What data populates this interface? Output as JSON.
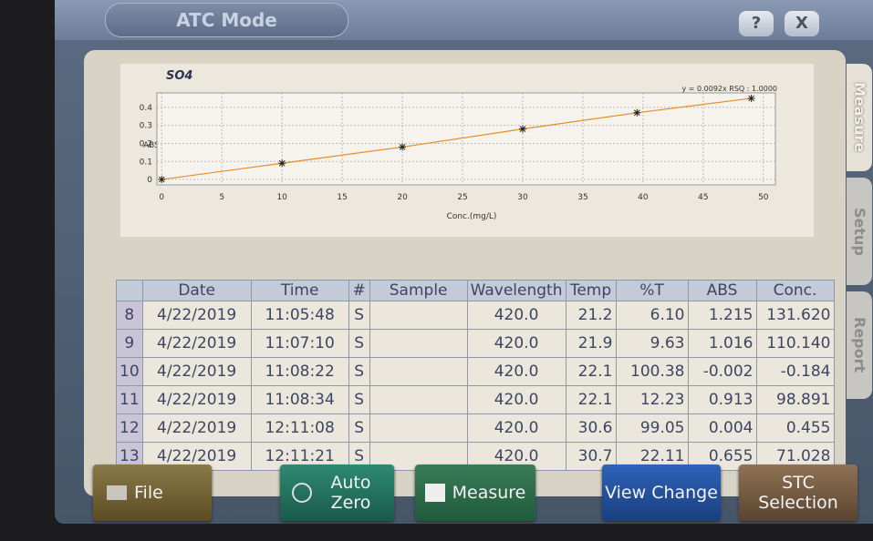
{
  "header": {
    "title": "ATC Mode",
    "help": "?",
    "close": "X"
  },
  "tabs": [
    "Measure",
    "Setup",
    "Report"
  ],
  "chart_data": {
    "type": "scatter",
    "title": "SO4",
    "xlabel": "Conc.(mg/L)",
    "ylabel": "ABS",
    "annotation": "y = 0.0092x  RSQ : 1.0000",
    "x": [
      0,
      10,
      20,
      30,
      39.5,
      49
    ],
    "values": [
      0,
      0.09,
      0.18,
      0.28,
      0.37,
      0.45
    ],
    "color": "#222222",
    "line_color": "#e0902a",
    "xlim": [
      -0.4,
      51
    ],
    "ylim": [
      -0.03,
      0.48
    ],
    "xticks": [
      0,
      5,
      10,
      15,
      20,
      25,
      30,
      35,
      40,
      45,
      50
    ],
    "yticks": [
      0,
      0.1,
      0.2,
      0.3,
      0.4
    ],
    "grid": true
  },
  "table": {
    "headers": [
      "Date",
      "Time",
      "#",
      "Sample",
      "Wavelength",
      "Temp",
      "%T",
      "ABS",
      "Conc."
    ],
    "rows": [
      {
        "n": "8",
        "cells": [
          "4/22/2019",
          "11:05:48",
          "S",
          null,
          "420.0",
          "21.2",
          "6.10",
          "1.215",
          "131.620"
        ]
      },
      {
        "n": "9",
        "cells": [
          "4/22/2019",
          "11:07:10",
          "S",
          null,
          "420.0",
          "21.9",
          "9.63",
          "1.016",
          "110.140"
        ]
      },
      {
        "n": "10",
        "cells": [
          "4/22/2019",
          "11:08:22",
          "S",
          null,
          "420.0",
          "22.1",
          "100.38",
          "-0.002",
          "-0.184"
        ]
      },
      {
        "n": "11",
        "cells": [
          "4/22/2019",
          "11:08:34",
          "S",
          null,
          "420.0",
          "22.1",
          "12.23",
          "0.913",
          "98.891"
        ]
      },
      {
        "n": "12",
        "cells": [
          "4/22/2019",
          "12:11:08",
          "S",
          null,
          "420.0",
          "30.6",
          "99.05",
          "0.004",
          "0.455"
        ]
      },
      {
        "n": "13",
        "cells": [
          "4/22/2019",
          "12:11:21",
          "S",
          null,
          "420.0",
          "30.7",
          "22.11",
          "0.655",
          "71.028"
        ]
      }
    ]
  },
  "buttons": [
    "File",
    "Auto Zero",
    "Measure",
    "View Change",
    "STC Selection"
  ]
}
